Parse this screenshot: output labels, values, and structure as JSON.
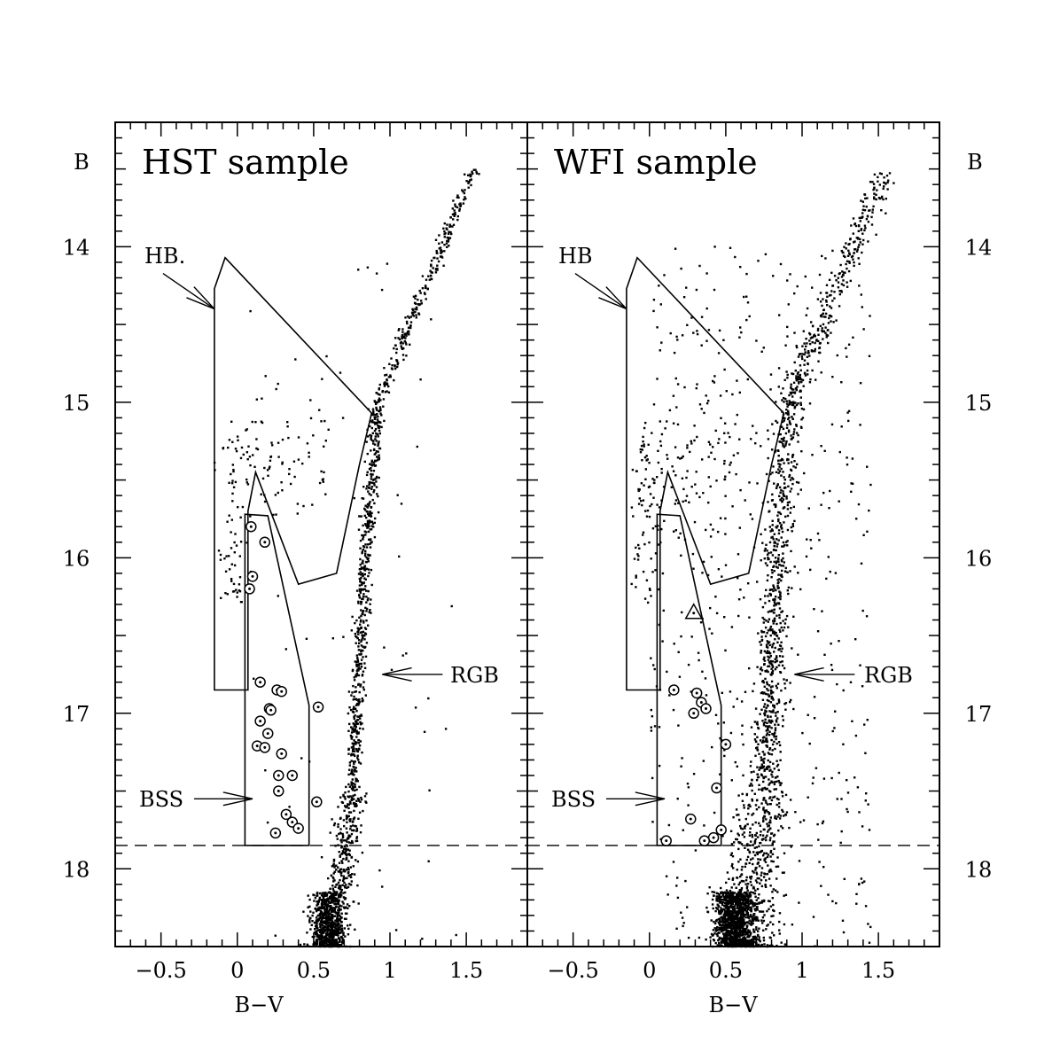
{
  "chart_data": {
    "type": "scatter",
    "panels": [
      {
        "title": "HST sample",
        "xlabel": "B−V",
        "ylabel": "B",
        "xlim": [
          -0.8,
          1.9
        ],
        "ylim": [
          18.5,
          13.2
        ],
        "x_ticks": [
          -0.5,
          0,
          0.5,
          1,
          1.5
        ],
        "x_tick_labels": [
          "−0.5",
          "0",
          "0.5",
          "1",
          "1.5"
        ],
        "y_ticks": [
          14,
          15,
          16,
          17,
          18
        ],
        "y_tick_labels": [
          "14",
          "15",
          "16",
          "17",
          "18"
        ],
        "y_label_side": "left",
        "limit_line_B": 17.85,
        "hb_box": [
          [
            -0.15,
            16.85
          ],
          [
            -0.15,
            14.27
          ],
          [
            -0.08,
            14.07
          ],
          [
            0.88,
            15.07
          ],
          [
            0.8,
            15.4
          ],
          [
            0.65,
            16.1
          ],
          [
            0.4,
            16.17
          ],
          [
            0.12,
            15.45
          ],
          [
            0.07,
            15.7
          ],
          [
            0.07,
            16.85
          ]
        ],
        "bss_box": [
          [
            0.05,
            17.85
          ],
          [
            0.05,
            15.72
          ],
          [
            0.2,
            15.73
          ],
          [
            0.47,
            16.95
          ],
          [
            0.47,
            17.85
          ]
        ],
        "bss_stars": [
          [
            0.09,
            15.8
          ],
          [
            0.18,
            15.9
          ],
          [
            0.1,
            16.12
          ],
          [
            0.08,
            16.2
          ],
          [
            0.15,
            16.8
          ],
          [
            0.26,
            16.85
          ],
          [
            0.29,
            16.86
          ],
          [
            0.21,
            16.97
          ],
          [
            0.22,
            16.98
          ],
          [
            0.53,
            16.96
          ],
          [
            0.15,
            17.05
          ],
          [
            0.2,
            17.13
          ],
          [
            0.13,
            17.21
          ],
          [
            0.18,
            17.22
          ],
          [
            0.29,
            17.26
          ],
          [
            0.27,
            17.4
          ],
          [
            0.36,
            17.4
          ],
          [
            0.27,
            17.5
          ],
          [
            0.52,
            17.57
          ],
          [
            0.32,
            17.65
          ],
          [
            0.36,
            17.7
          ],
          [
            0.4,
            17.74
          ],
          [
            0.25,
            17.77
          ]
        ],
        "special_stars": [],
        "annotations": [
          {
            "text": "HB.",
            "label_at": [
              -0.45,
              14.05
            ],
            "arrow_to": [
              -0.15,
              14.4
            ]
          },
          {
            "text": "BSS",
            "label_at": [
              -0.45,
              17.55
            ],
            "arrow_to": [
              0.1,
              17.55
            ]
          },
          {
            "text": "RGB",
            "label_at": [
              1.45,
              16.75
            ],
            "arrow_to": [
              0.95,
              16.75
            ]
          }
        ]
      },
      {
        "title": "WFI sample",
        "xlabel": "B−V",
        "ylabel": "B",
        "xlim": [
          -0.8,
          1.9
        ],
        "ylim": [
          18.5,
          13.2
        ],
        "x_ticks": [
          -0.5,
          0,
          0.5,
          1,
          1.5
        ],
        "x_tick_labels": [
          "−0.5",
          "0",
          "0.5",
          "1",
          "1.5"
        ],
        "y_ticks": [
          14,
          15,
          16,
          17,
          18
        ],
        "y_tick_labels": [
          "14",
          "15",
          "16",
          "17",
          "18"
        ],
        "y_label_side": "right",
        "limit_line_B": 17.85,
        "hb_box": [
          [
            -0.15,
            16.85
          ],
          [
            -0.15,
            14.27
          ],
          [
            -0.08,
            14.07
          ],
          [
            0.88,
            15.07
          ],
          [
            0.8,
            15.4
          ],
          [
            0.65,
            16.1
          ],
          [
            0.4,
            16.17
          ],
          [
            0.12,
            15.45
          ],
          [
            0.07,
            15.7
          ],
          [
            0.07,
            16.85
          ]
        ],
        "bss_box": [
          [
            0.05,
            17.85
          ],
          [
            0.05,
            15.72
          ],
          [
            0.2,
            15.73
          ],
          [
            0.47,
            16.95
          ],
          [
            0.47,
            17.85
          ]
        ],
        "bss_stars": [
          [
            0.16,
            16.85
          ],
          [
            0.31,
            16.87
          ],
          [
            0.34,
            16.93
          ],
          [
            0.37,
            16.97
          ],
          [
            0.29,
            17.0
          ],
          [
            0.5,
            17.2
          ],
          [
            0.44,
            17.48
          ],
          [
            0.27,
            17.68
          ],
          [
            0.47,
            17.75
          ],
          [
            0.42,
            17.8
          ],
          [
            0.36,
            17.82
          ],
          [
            0.11,
            17.82
          ]
        ],
        "special_stars": [
          [
            0.29,
            16.35
          ]
        ],
        "annotations": [
          {
            "text": "HB",
            "label_at": [
              -0.45,
              14.05
            ],
            "arrow_to": [
              -0.15,
              14.4
            ]
          },
          {
            "text": "BSS",
            "label_at": [
              -0.45,
              17.55
            ],
            "arrow_to": [
              0.1,
              17.55
            ]
          },
          {
            "text": "RGB",
            "label_at": [
              1.45,
              16.75
            ],
            "arrow_to": [
              0.95,
              16.75
            ]
          }
        ]
      }
    ]
  }
}
